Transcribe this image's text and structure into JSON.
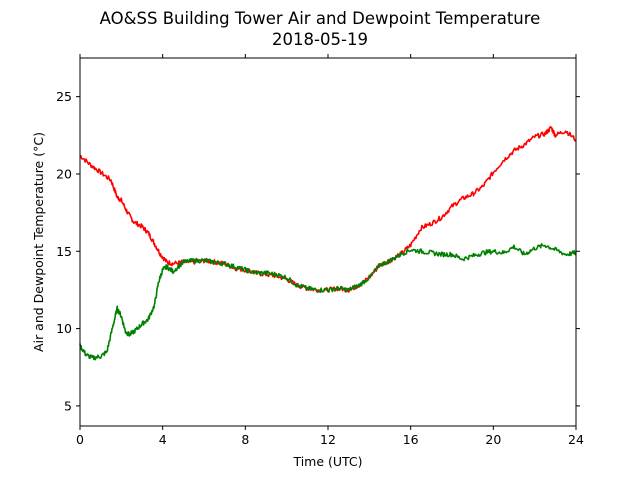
{
  "chart_data": {
    "type": "line",
    "title": "AO&SS Building Tower Air and Dewpoint Temperature",
    "subtitle": "2018-05-19",
    "xlabel": "Time (UTC)",
    "ylabel": "Air and Dewpoint Temperature (°C)",
    "xlim": [
      0,
      24
    ],
    "ylim": [
      3.7,
      27.5
    ],
    "xticks": [
      0,
      4,
      8,
      12,
      16,
      20,
      24
    ],
    "xtick_labels": [
      "0",
      "4",
      "8",
      "12",
      "16",
      "20",
      "24"
    ],
    "yticks": [
      5,
      10,
      15,
      20,
      25
    ],
    "ytick_labels": [
      "5",
      "10",
      "15",
      "20",
      "25"
    ],
    "grid": false,
    "legend": "none",
    "series": [
      {
        "color": "#ff0000",
        "x": [
          0,
          0.5,
          1,
          1.5,
          1.8,
          2,
          2.3,
          2.6,
          3,
          3.3,
          3.6,
          3.9,
          4.2,
          4.5,
          5,
          5.5,
          6,
          6.5,
          7,
          7.5,
          8,
          8.5,
          9,
          9.5,
          10,
          10.5,
          11,
          11.5,
          12,
          12.5,
          13,
          13.5,
          14,
          14.5,
          15,
          15.5,
          16,
          16.5,
          17,
          17.5,
          18,
          18.5,
          19,
          19.5,
          20,
          20.5,
          21,
          21.5,
          22,
          22.5,
          22.8,
          23,
          23.5,
          24
        ],
        "y": [
          21.2,
          20.6,
          20.1,
          19.6,
          18.5,
          18.3,
          17.5,
          16.9,
          16.6,
          16.2,
          15.5,
          14.8,
          14.3,
          14.2,
          14.3,
          14.3,
          14.4,
          14.3,
          14.2,
          13.9,
          13.8,
          13.6,
          13.5,
          13.4,
          13.2,
          12.8,
          12.6,
          12.5,
          12.5,
          12.6,
          12.5,
          12.8,
          13.3,
          14.1,
          14.4,
          14.8,
          15.4,
          16.5,
          16.8,
          17.2,
          17.9,
          18.4,
          18.7,
          19.2,
          20.1,
          20.9,
          21.5,
          21.9,
          22.4,
          22.6,
          23.0,
          22.5,
          22.8,
          22.2
        ]
      },
      {
        "color": "#008000",
        "x": [
          0,
          0.3,
          0.6,
          1,
          1.3,
          1.6,
          1.8,
          2,
          2.2,
          2.4,
          2.7,
          3,
          3.3,
          3.6,
          3.8,
          4,
          4.2,
          4.5,
          5,
          5.5,
          6,
          6.5,
          7,
          7.5,
          8,
          8.5,
          9,
          9.5,
          10,
          10.5,
          11,
          11.5,
          12,
          12.5,
          13,
          13.5,
          14,
          14.5,
          15,
          15.5,
          16,
          16.5,
          17,
          17.5,
          18,
          18.5,
          19,
          19.5,
          20,
          20.5,
          21,
          21.5,
          22,
          22.5,
          23,
          23.5,
          24
        ],
        "y": [
          8.9,
          8.3,
          8.1,
          8.2,
          8.5,
          10.2,
          11.3,
          10.8,
          9.8,
          9.6,
          9.9,
          10.3,
          10.6,
          11.5,
          13.0,
          13.8,
          14.0,
          13.7,
          14.3,
          14.4,
          14.4,
          14.3,
          14.2,
          14.0,
          13.8,
          13.6,
          13.6,
          13.5,
          13.3,
          12.8,
          12.6,
          12.5,
          12.5,
          12.6,
          12.5,
          12.8,
          13.3,
          14.1,
          14.4,
          14.8,
          15.1,
          15.0,
          14.9,
          14.8,
          14.8,
          14.5,
          14.7,
          14.9,
          15.0,
          14.9,
          15.3,
          14.8,
          15.2,
          15.4,
          15.1,
          14.8,
          14.9
        ]
      }
    ]
  }
}
